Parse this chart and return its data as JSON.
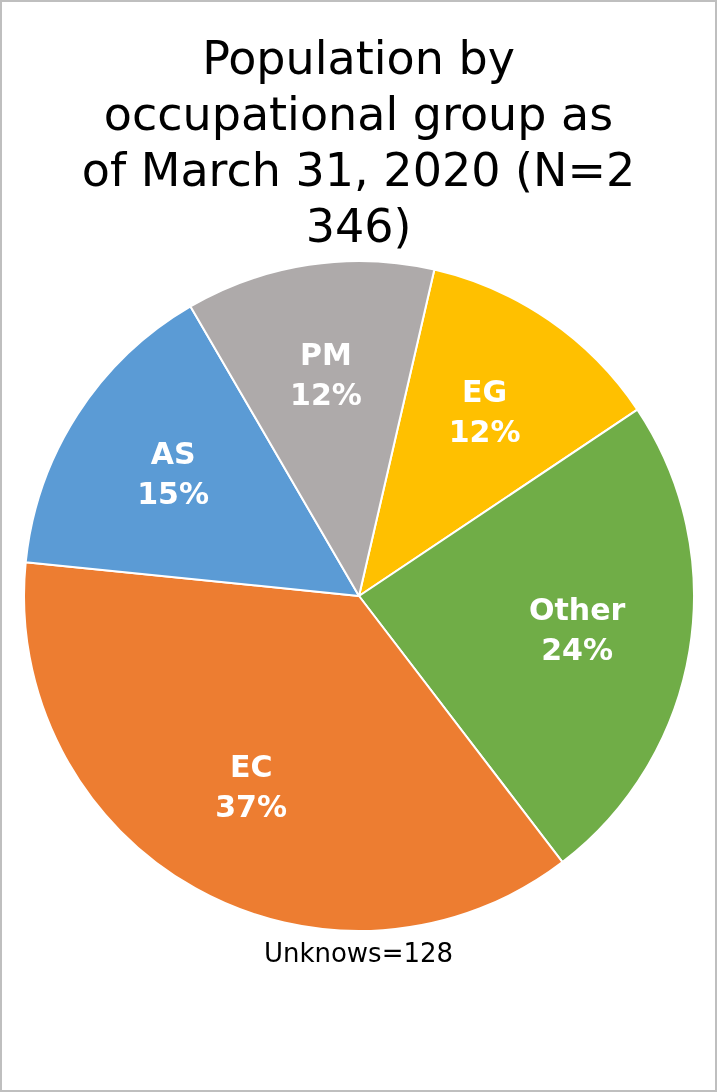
{
  "chart_data": {
    "type": "pie",
    "title": "Population by occupational group as of March 31, 2020 (N=2 346)",
    "categories": [
      "EG",
      "Other",
      "EC",
      "AS",
      "PM"
    ],
    "values": [
      12,
      24,
      37,
      15,
      12
    ],
    "value_labels": [
      "12%",
      "24%",
      "37%",
      "15%",
      "12%"
    ],
    "colors": [
      "#ffc000",
      "#70ad47",
      "#ed7d31",
      "#5b9bd5",
      "#aeaaaa"
    ],
    "legend": false,
    "annotations": [
      "Unknows=128"
    ]
  }
}
